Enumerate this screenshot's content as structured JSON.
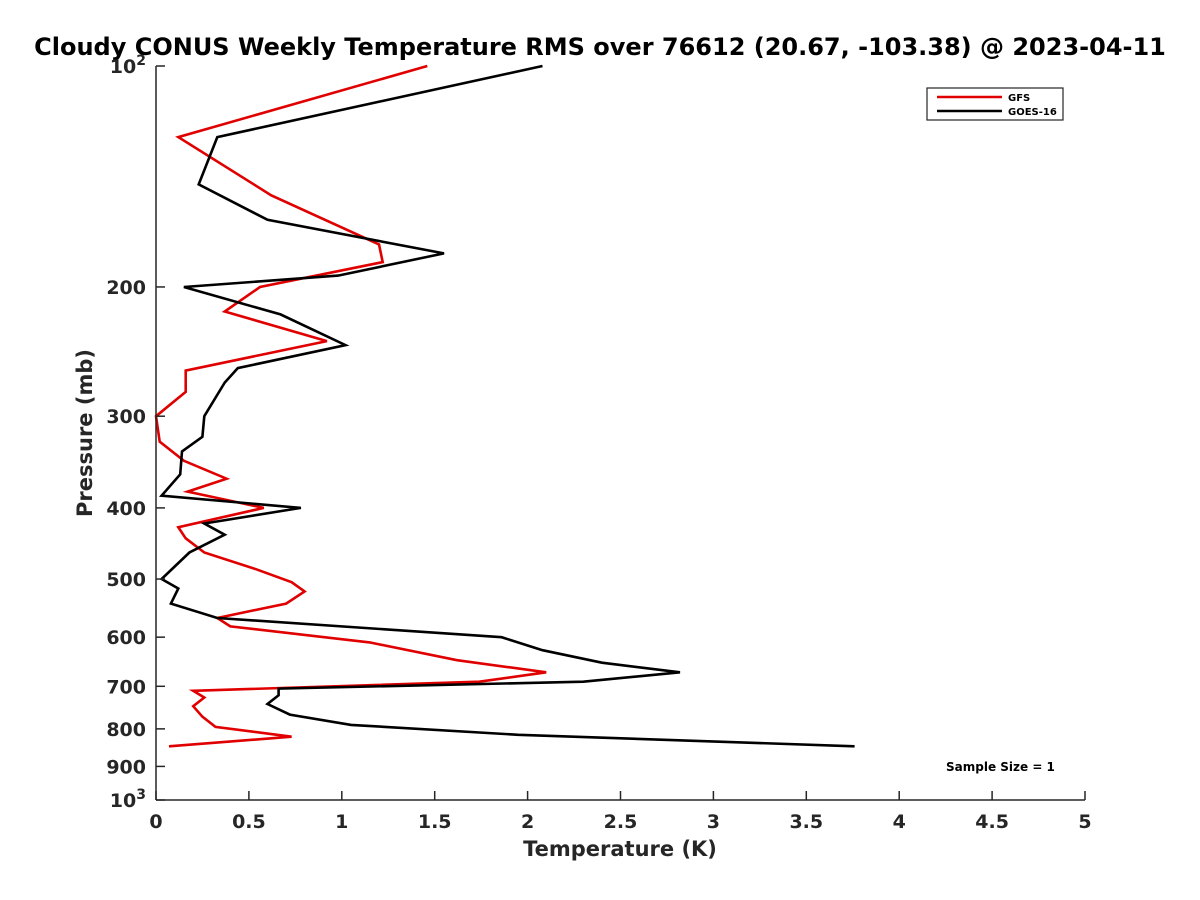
{
  "chart_data": {
    "type": "line",
    "title": "Cloudy CONUS Weekly Temperature RMS over 76612 (20.67, -103.38) @ 2023-04-11",
    "xlabel": "Temperature (K)",
    "ylabel": "Pressure (mb)",
    "xlim": [
      0,
      5
    ],
    "ylim": [
      1000,
      100
    ],
    "yscale": "log",
    "x_ticks": [
      {
        "value": 0,
        "label": "0"
      },
      {
        "value": 0.5,
        "label": "0.5"
      },
      {
        "value": 1,
        "label": "1"
      },
      {
        "value": 1.5,
        "label": "1.5"
      },
      {
        "value": 2,
        "label": "2"
      },
      {
        "value": 2.5,
        "label": "2.5"
      },
      {
        "value": 3,
        "label": "3"
      },
      {
        "value": 3.5,
        "label": "3.5"
      },
      {
        "value": 4,
        "label": "4"
      },
      {
        "value": 4.5,
        "label": "4.5"
      },
      {
        "value": 5,
        "label": "5"
      }
    ],
    "y_ticks": [
      {
        "value": 100,
        "base": "10",
        "exp": "2"
      },
      {
        "value": 200,
        "label": "200"
      },
      {
        "value": 300,
        "label": "300"
      },
      {
        "value": 400,
        "label": "400"
      },
      {
        "value": 500,
        "label": "500"
      },
      {
        "value": 600,
        "label": "600"
      },
      {
        "value": 700,
        "label": "700"
      },
      {
        "value": 800,
        "label": "800"
      },
      {
        "value": 900,
        "label": "900"
      },
      {
        "value": 1000,
        "base": "10",
        "exp": "3"
      }
    ],
    "grid": false,
    "legend_position": "top-right",
    "annotation": "Sample Size = 1",
    "series": [
      {
        "name": "GFS",
        "color": "#e00000",
        "points": [
          [
            1.46,
            100
          ],
          [
            0.12,
            125
          ],
          [
            0.62,
            150
          ],
          [
            1.2,
            175
          ],
          [
            1.22,
            185
          ],
          [
            0.56,
            200
          ],
          [
            0.37,
            216
          ],
          [
            0.92,
            237
          ],
          [
            0.16,
            260
          ],
          [
            0.16,
            278
          ],
          [
            0.0,
            300
          ],
          [
            0.02,
            325
          ],
          [
            0.15,
            345
          ],
          [
            0.38,
            365
          ],
          [
            0.17,
            380
          ],
          [
            0.58,
            400
          ],
          [
            0.12,
            425
          ],
          [
            0.16,
            440
          ],
          [
            0.26,
            460
          ],
          [
            0.54,
            485
          ],
          [
            0.73,
            505
          ],
          [
            0.8,
            520
          ],
          [
            0.7,
            540
          ],
          [
            0.33,
            565
          ],
          [
            0.4,
            580
          ],
          [
            1.15,
            610
          ],
          [
            1.62,
            645
          ],
          [
            2.1,
            670
          ],
          [
            1.74,
            690
          ],
          [
            0.2,
            710
          ],
          [
            0.26,
            725
          ],
          [
            0.2,
            745
          ],
          [
            0.25,
            770
          ],
          [
            0.32,
            795
          ],
          [
            0.73,
            820
          ],
          [
            0.07,
            845
          ]
        ]
      },
      {
        "name": "GOES-16",
        "color": "#000000",
        "points": [
          [
            2.08,
            100
          ],
          [
            0.33,
            125
          ],
          [
            0.23,
            145
          ],
          [
            0.6,
            162
          ],
          [
            1.55,
            180
          ],
          [
            0.98,
            193
          ],
          [
            0.15,
            200
          ],
          [
            0.67,
            218
          ],
          [
            1.02,
            240
          ],
          [
            0.44,
            258
          ],
          [
            0.37,
            270
          ],
          [
            0.26,
            300
          ],
          [
            0.25,
            320
          ],
          [
            0.14,
            335
          ],
          [
            0.13,
            360
          ],
          [
            0.03,
            385
          ],
          [
            0.78,
            400
          ],
          [
            0.26,
            420
          ],
          [
            0.37,
            435
          ],
          [
            0.18,
            460
          ],
          [
            0.03,
            500
          ],
          [
            0.12,
            515
          ],
          [
            0.08,
            540
          ],
          [
            0.33,
            565
          ],
          [
            1.86,
            600
          ],
          [
            2.08,
            625
          ],
          [
            2.4,
            650
          ],
          [
            2.82,
            670
          ],
          [
            2.3,
            690
          ],
          [
            0.66,
            705
          ],
          [
            0.66,
            720
          ],
          [
            0.6,
            740
          ],
          [
            0.72,
            765
          ],
          [
            1.05,
            790
          ],
          [
            1.95,
            815
          ],
          [
            3.76,
            845
          ]
        ]
      }
    ]
  },
  "colors": {
    "axis": "#262626",
    "background": "#ffffff"
  }
}
